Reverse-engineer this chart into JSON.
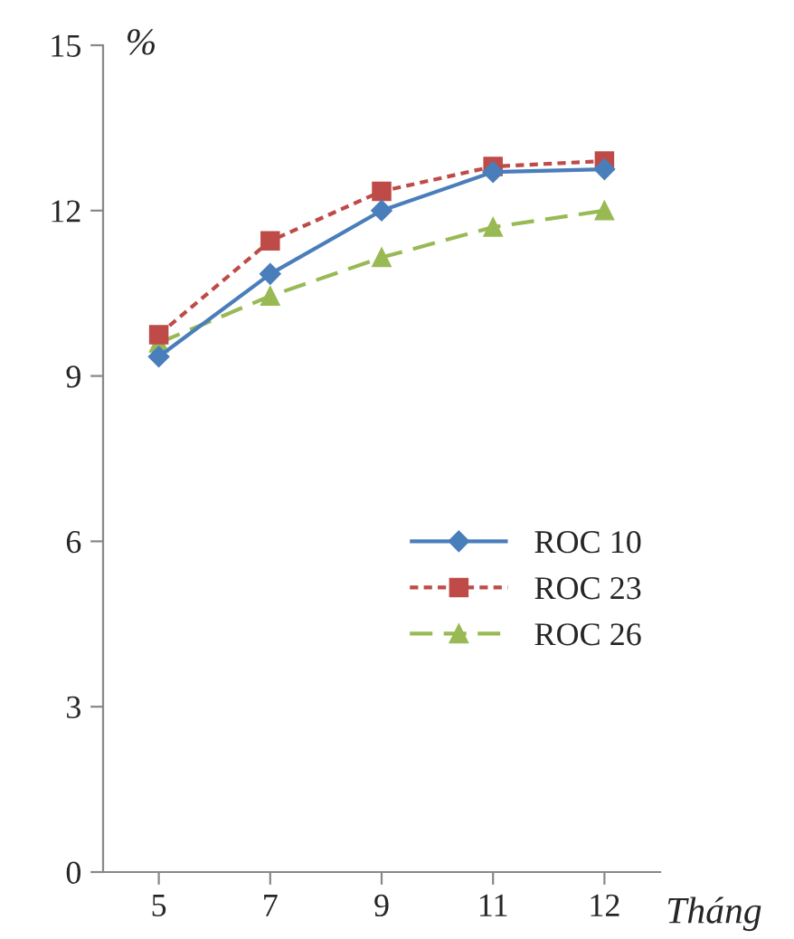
{
  "chart_data": {
    "type": "line",
    "ylabel": "%",
    "xlabel": "Tháng",
    "categories": [
      "5",
      "7",
      "9",
      "11",
      "12"
    ],
    "series": [
      {
        "name": "ROC 10",
        "color": "#4a7ebb",
        "marker": "diamond",
        "line_style": "solid",
        "values": [
          9.35,
          10.85,
          12.0,
          12.7,
          12.75
        ]
      },
      {
        "name": "ROC 23",
        "color": "#be4b48",
        "marker": "square",
        "line_style": "dotted",
        "values": [
          9.75,
          11.45,
          12.35,
          12.8,
          12.9
        ]
      },
      {
        "name": "ROC 26",
        "color": "#98b954",
        "marker": "triangle",
        "line_style": "dashed",
        "values": [
          9.6,
          10.45,
          11.15,
          11.7,
          12.0
        ]
      }
    ],
    "ylim": [
      0,
      15
    ],
    "yticks": [
      0,
      3,
      6,
      9,
      12,
      15
    ],
    "grid": false,
    "legend": "right"
  }
}
